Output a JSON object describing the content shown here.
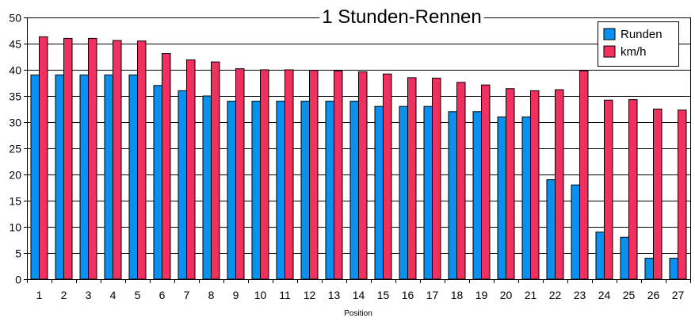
{
  "chart_data": {
    "type": "bar",
    "title": "1 Stunden-Rennen",
    "xlabel": "Position",
    "ylabel": "",
    "ylim": [
      0,
      50
    ],
    "ytick_step": 5,
    "grid": true,
    "legend_position": "top-right",
    "categories": [
      "1",
      "2",
      "3",
      "4",
      "5",
      "6",
      "7",
      "8",
      "9",
      "10",
      "11",
      "12",
      "13",
      "14",
      "15",
      "16",
      "17",
      "18",
      "19",
      "20",
      "21",
      "22",
      "23",
      "24",
      "25",
      "26",
      "27"
    ],
    "series": [
      {
        "name": "Runden",
        "color": "#0a90ee",
        "values": [
          39,
          39,
          39,
          39,
          39,
          37,
          36,
          35,
          34,
          34,
          34,
          34,
          34,
          34,
          33,
          33,
          33,
          32,
          32,
          31,
          31,
          19,
          18,
          9,
          8,
          4,
          4
        ]
      },
      {
        "name": "km/h",
        "color": "#f0305f",
        "values": [
          46.3,
          46.0,
          46.0,
          45.6,
          45.5,
          43.1,
          41.9,
          41.5,
          40.2,
          40.0,
          40.0,
          39.9,
          39.8,
          39.6,
          39.2,
          38.5,
          38.4,
          37.6,
          37.1,
          36.4,
          36.0,
          36.2,
          39.8,
          34.2,
          34.3,
          32.5,
          32.3
        ]
      }
    ]
  }
}
